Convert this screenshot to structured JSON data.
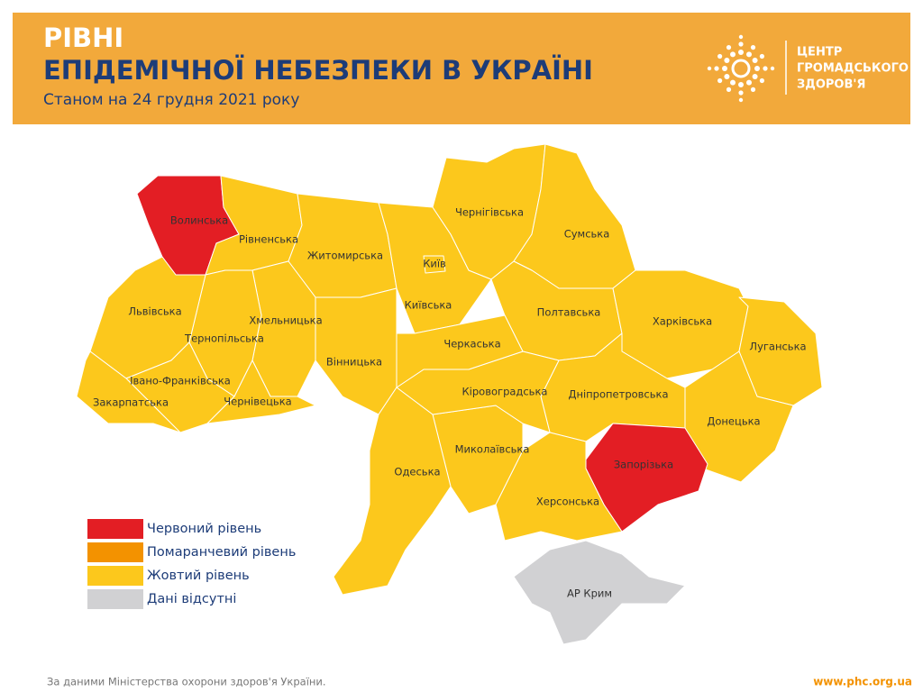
{
  "header": {
    "title_lines": [
      "РІВНІ",
      "ЕПІДЕМІЧНОЇ НЕБЕЗПЕКИ В УКРАЇНІ"
    ],
    "subtitle": "Станом на 24 грудня 2021 року"
  },
  "logo": {
    "lines": [
      "ЦЕНТР",
      "ГРОМАДСЬКОГО",
      "ЗДОРОВ'Я"
    ]
  },
  "map": {
    "regions": [
      {
        "name": "Волинська",
        "color": "#e31e24"
      },
      {
        "name": "Рівненська",
        "color": "#fcc81c"
      },
      {
        "name": "Житомирська",
        "color": "#fcc81c"
      },
      {
        "name": "Київська",
        "color": "#fcc81c"
      },
      {
        "name": "Київ",
        "color": "#fcc81c"
      },
      {
        "name": "Чернігівська",
        "color": "#fcc81c"
      },
      {
        "name": "Сумська",
        "color": "#fcc81c"
      },
      {
        "name": "Полтавська",
        "color": "#fcc81c"
      },
      {
        "name": "Харківська",
        "color": "#fcc81c"
      },
      {
        "name": "Луганська",
        "color": "#fcc81c"
      },
      {
        "name": "Донецька",
        "color": "#fcc81c"
      },
      {
        "name": "Дніпропетровська",
        "color": "#fcc81c"
      },
      {
        "name": "Запорізька",
        "color": "#e31e24"
      },
      {
        "name": "Херсонська",
        "color": "#fcc81c"
      },
      {
        "name": "Миколаївська",
        "color": "#fcc81c"
      },
      {
        "name": "Кіровоградська",
        "color": "#fcc81c"
      },
      {
        "name": "Черкаська",
        "color": "#fcc81c"
      },
      {
        "name": "Вінницька",
        "color": "#fcc81c"
      },
      {
        "name": "Одеська",
        "color": "#fcc81c"
      },
      {
        "name": "Хмельницька",
        "color": "#fcc81c"
      },
      {
        "name": "Тернопільська",
        "color": "#fcc81c"
      },
      {
        "name": "Львівська",
        "color": "#fcc81c"
      },
      {
        "name": "Івано-Франківська",
        "color": "#fcc81c"
      },
      {
        "name": "Чернівецька",
        "color": "#fcc81c"
      },
      {
        "name": "Закарпатська",
        "color": "#fcc81c"
      },
      {
        "name": "АР Крим",
        "color": "#d1d1d3"
      }
    ]
  },
  "legend": [
    {
      "label": "Червоний рівень",
      "color": "#e31e24"
    },
    {
      "label": "Помаранчевий рівень",
      "color": "#f39200"
    },
    {
      "label": "Жовтий рівень",
      "color": "#fcc81c"
    },
    {
      "label": "Дані відсутні",
      "color": "#d1d1d3"
    }
  ],
  "footer": {
    "source": "За даними Міністерства охорони здоров'я України.",
    "url": "www.phc.org.ua"
  }
}
